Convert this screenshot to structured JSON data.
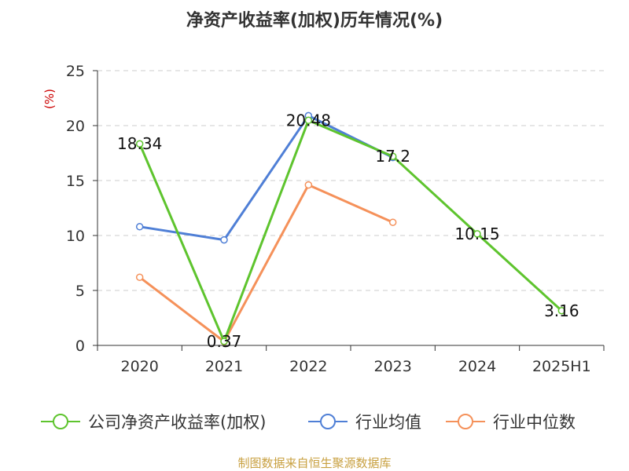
{
  "title": "净资产收益率(加权)历年情况(%)",
  "source": "制图数据来自恒生聚源数据库",
  "chart_data": {
    "type": "line",
    "title": "净资产收益率(加权)历年情况(%)",
    "ylabel": "(%)",
    "ylim": [
      0,
      25
    ],
    "yticks": [
      0,
      5,
      10,
      15,
      20,
      25
    ],
    "grid": true,
    "legend_position": "bottom",
    "categories": [
      "2020",
      "2021",
      "2022",
      "2023",
      "2024",
      "2025H1"
    ],
    "series": [
      {
        "name": "公司净资产收益率(加权)",
        "color": "#5ec42e",
        "values": [
          18.34,
          0.37,
          20.48,
          17.2,
          10.15,
          3.16
        ],
        "labels": [
          "18.34",
          "0.37",
          "20.48",
          "17.2",
          "10.15",
          "3.16"
        ]
      },
      {
        "name": "行业均值",
        "color": "#4f7fd6",
        "values": [
          10.8,
          9.6,
          20.9,
          17.1,
          null,
          null
        ]
      },
      {
        "name": "行业中位数",
        "color": "#f5915a",
        "values": [
          6.2,
          0.35,
          14.6,
          11.2,
          null,
          null
        ]
      }
    ]
  }
}
